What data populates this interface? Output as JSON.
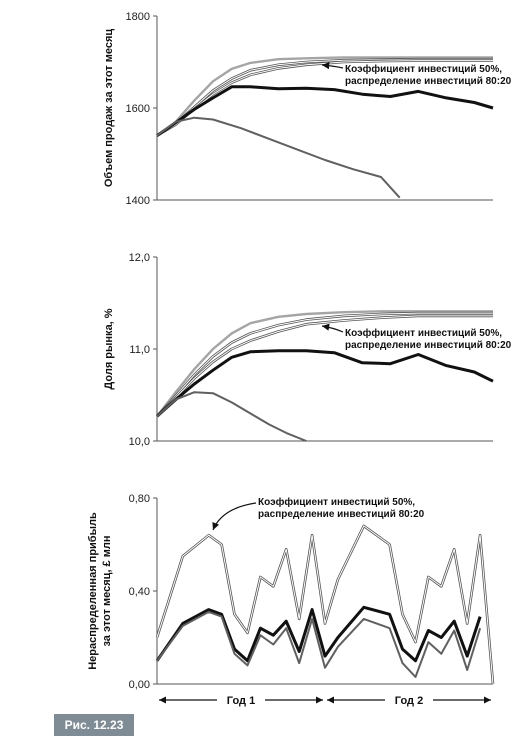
{
  "figure_label": "Рис. 12.23",
  "colors": {
    "light": "#a5a5a5",
    "dark": "#111111",
    "mid": "#606060",
    "label_bg": "#7f8c95"
  },
  "chart_data": [
    {
      "type": "line",
      "ylabel": "Объем продаж за этот месяц",
      "ylim": [
        1400,
        1800
      ],
      "yticks": [
        "1400",
        "1600",
        "1800"
      ],
      "annotation": [
        "Коэффициент инвестиций 50%,",
        "распределение инвестиций 80:20"
      ],
      "series": [
        {
          "style": "light",
          "x": [
            0,
            2,
            4,
            6,
            8,
            10,
            13,
            16,
            20,
            24,
            28,
            32,
            36
          ],
          "values": [
            1540,
            1570,
            1616,
            1658,
            1685,
            1698,
            1706,
            1708,
            1710,
            1710,
            1710,
            1710,
            1710
          ]
        },
        {
          "style": "double",
          "x": [
            0,
            2,
            4,
            6,
            8,
            10,
            13,
            16,
            20,
            24,
            28,
            32,
            36
          ],
          "values": [
            1540,
            1566,
            1602,
            1638,
            1664,
            1682,
            1694,
            1700,
            1704,
            1705,
            1706,
            1706,
            1706
          ]
        },
        {
          "style": "double",
          "x": [
            0,
            2,
            4,
            6,
            8,
            10,
            13,
            16,
            20,
            24,
            28,
            32,
            36
          ],
          "values": [
            1540,
            1564,
            1598,
            1630,
            1655,
            1672,
            1686,
            1694,
            1700,
            1702,
            1703,
            1703,
            1703
          ]
        },
        {
          "style": "dark",
          "x": [
            0,
            2,
            4,
            6,
            8,
            10,
            13,
            16,
            19,
            22,
            25,
            28,
            31,
            34,
            36
          ],
          "values": [
            1540,
            1568,
            1597,
            1622,
            1646,
            1646,
            1642,
            1643,
            1640,
            1630,
            1625,
            1636,
            1622,
            1612,
            1600
          ]
        },
        {
          "style": "mid",
          "x": [
            0,
            2,
            4,
            6,
            9,
            12,
            15,
            18,
            21,
            24,
            26
          ],
          "values": [
            1540,
            1570,
            1579,
            1575,
            1556,
            1533,
            1510,
            1487,
            1467,
            1450,
            1405
          ]
        }
      ]
    },
    {
      "type": "line",
      "ylabel": "Доля рынка, %",
      "ylim": [
        10.0,
        12.0
      ],
      "yticks": [
        "10,0",
        "11,0",
        "12,0"
      ],
      "annotation": [
        "Коэффициент инвестиций 50%,",
        "распределение инвестиций 80:20"
      ],
      "series": [
        {
          "style": "light",
          "x": [
            0,
            2,
            4,
            6,
            8,
            10,
            13,
            16,
            20,
            24,
            28,
            32,
            36
          ],
          "values": [
            10.27,
            10.53,
            10.78,
            11.0,
            11.17,
            11.28,
            11.35,
            11.38,
            11.4,
            11.41,
            11.41,
            11.41,
            11.41
          ]
        },
        {
          "style": "double",
          "x": [
            0,
            2,
            4,
            6,
            8,
            10,
            13,
            16,
            20,
            24,
            28,
            32,
            36
          ],
          "values": [
            10.27,
            10.49,
            10.72,
            10.92,
            11.07,
            11.17,
            11.26,
            11.32,
            11.36,
            11.38,
            11.39,
            11.39,
            11.39
          ]
        },
        {
          "style": "double",
          "x": [
            0,
            2,
            4,
            6,
            8,
            10,
            13,
            16,
            20,
            24,
            28,
            32,
            36
          ],
          "values": [
            10.27,
            10.47,
            10.68,
            10.86,
            11.0,
            11.09,
            11.19,
            11.27,
            11.31,
            11.34,
            11.36,
            11.36,
            11.36
          ]
        },
        {
          "style": "dark",
          "x": [
            0,
            2,
            4,
            6,
            8,
            10,
            13,
            16,
            19,
            22,
            25,
            28,
            31,
            34,
            36
          ],
          "values": [
            10.27,
            10.45,
            10.62,
            10.77,
            10.91,
            10.97,
            10.98,
            10.98,
            10.96,
            10.85,
            10.84,
            10.94,
            10.82,
            10.75,
            10.65
          ]
        },
        {
          "style": "mid",
          "x": [
            0,
            2,
            4,
            6,
            8,
            10,
            12,
            14,
            16
          ],
          "values": [
            10.27,
            10.45,
            10.53,
            10.52,
            10.42,
            10.3,
            10.18,
            10.08,
            10.0
          ]
        }
      ]
    },
    {
      "type": "line",
      "ylabel": [
        "Нераспределенная прибыль",
        "за этот месяц, £ млн"
      ],
      "ylim": [
        0.0,
        0.8
      ],
      "yticks": [
        "0,00",
        "0,40",
        "0,80"
      ],
      "annotation": [
        "Коэффициент инвестиций 50%,",
        "распределение инвестиций 80:20"
      ],
      "period_labels": [
        "Год 1",
        "Год 2"
      ],
      "series": [
        {
          "style": "double",
          "x": [
            0,
            2,
            4,
            5,
            6,
            7,
            8,
            9,
            10,
            11,
            12,
            13,
            14,
            16,
            18,
            19,
            20,
            21,
            22,
            23,
            24,
            25,
            26
          ],
          "values": [
            0.2,
            0.55,
            0.64,
            0.6,
            0.3,
            0.22,
            0.46,
            0.42,
            0.58,
            0.28,
            0.64,
            0.26,
            0.45,
            0.68,
            0.6,
            0.3,
            0.18,
            0.46,
            0.42,
            0.58,
            0.26,
            0.64,
            0.0
          ]
        },
        {
          "style": "dark",
          "x": [
            0,
            2,
            4,
            5,
            6,
            7,
            8,
            9,
            10,
            11,
            12,
            13,
            14,
            16,
            18,
            19,
            20,
            21,
            22,
            23,
            24,
            25
          ],
          "values": [
            0.1,
            0.26,
            0.32,
            0.3,
            0.15,
            0.1,
            0.24,
            0.21,
            0.27,
            0.14,
            0.32,
            0.12,
            0.2,
            0.33,
            0.3,
            0.15,
            0.1,
            0.23,
            0.2,
            0.27,
            0.12,
            0.29
          ]
        },
        {
          "style": "mid",
          "x": [
            0,
            2,
            4,
            5,
            6,
            7,
            8,
            9,
            10,
            11,
            12,
            13,
            14,
            16,
            18,
            19,
            20,
            21,
            22,
            23,
            24,
            25
          ],
          "values": [
            0.1,
            0.25,
            0.31,
            0.29,
            0.13,
            0.08,
            0.21,
            0.17,
            0.24,
            0.09,
            0.28,
            0.07,
            0.16,
            0.28,
            0.24,
            0.09,
            0.03,
            0.18,
            0.13,
            0.23,
            0.06,
            0.24
          ]
        }
      ]
    }
  ]
}
